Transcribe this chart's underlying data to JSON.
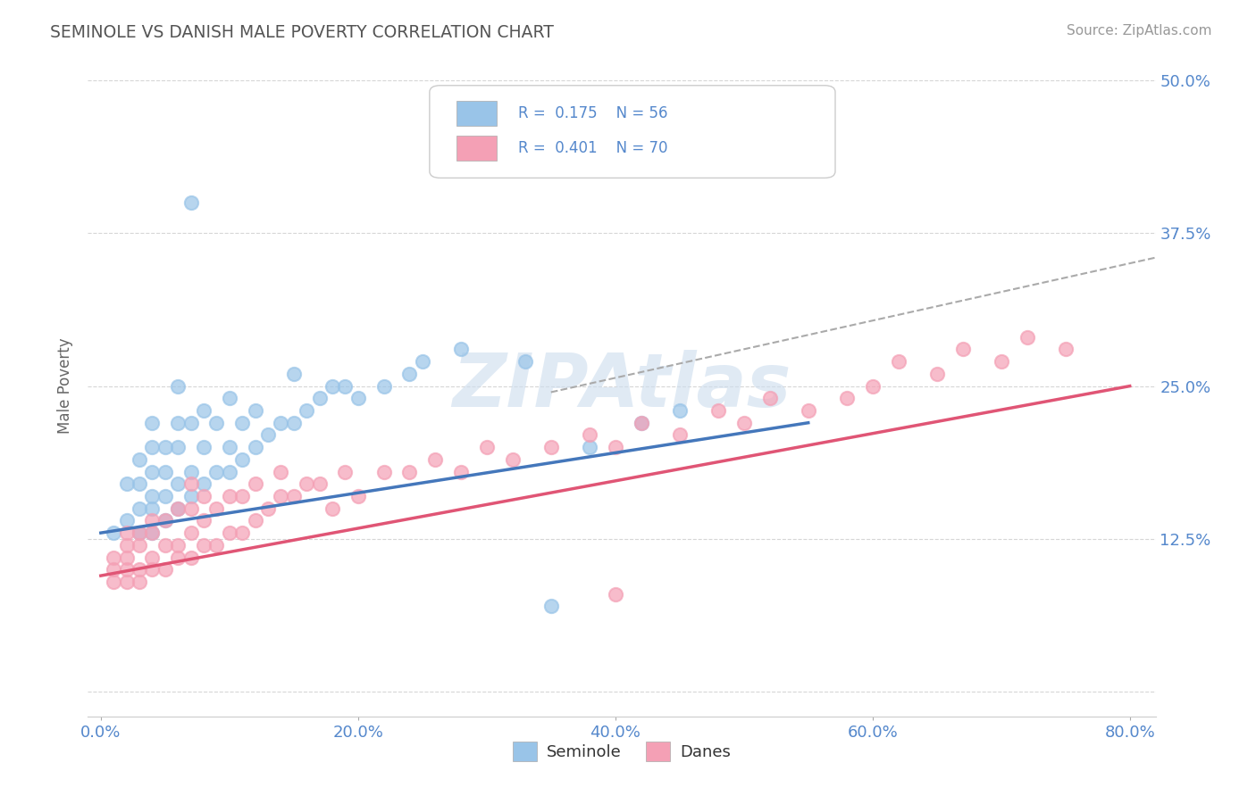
{
  "title": "SEMINOLE VS DANISH MALE POVERTY CORRELATION CHART",
  "source": "Source: ZipAtlas.com",
  "ylabel": "Male Poverty",
  "xlim": [
    -0.01,
    0.82
  ],
  "ylim": [
    -0.02,
    0.52
  ],
  "xticks": [
    0.0,
    0.2,
    0.4,
    0.6,
    0.8
  ],
  "xtick_labels": [
    "0.0%",
    "20.0%",
    "40.0%",
    "60.0%",
    "80.0%"
  ],
  "yticks": [
    0.0,
    0.125,
    0.25,
    0.375,
    0.5
  ],
  "ytick_labels": [
    "",
    "12.5%",
    "25.0%",
    "37.5%",
    "50.0%"
  ],
  "seminole_R": 0.175,
  "seminole_N": 56,
  "danes_R": 0.401,
  "danes_N": 70,
  "seminole_color": "#99c4e8",
  "danes_color": "#f4a0b5",
  "seminole_line_color": "#4477bb",
  "danes_line_color": "#e05575",
  "seminole_line_style": "-",
  "danes_line_style": "-",
  "gray_dashed_color": "#aaaaaa",
  "title_color": "#555555",
  "tick_color": "#5588cc",
  "watermark": "ZIPAtlas",
  "watermark_color": "#ccddee",
  "legend_label_1": "Seminole",
  "legend_label_2": "Danes",
  "background_color": "#ffffff",
  "grid_color": "#cccccc",
  "seminole_x": [
    0.01,
    0.02,
    0.02,
    0.03,
    0.03,
    0.03,
    0.03,
    0.04,
    0.04,
    0.04,
    0.04,
    0.04,
    0.04,
    0.05,
    0.05,
    0.05,
    0.05,
    0.06,
    0.06,
    0.06,
    0.06,
    0.06,
    0.07,
    0.07,
    0.07,
    0.08,
    0.08,
    0.08,
    0.09,
    0.09,
    0.1,
    0.1,
    0.1,
    0.11,
    0.11,
    0.12,
    0.12,
    0.13,
    0.14,
    0.15,
    0.15,
    0.16,
    0.17,
    0.18,
    0.19,
    0.2,
    0.22,
    0.24,
    0.25,
    0.28,
    0.33,
    0.35,
    0.38,
    0.42,
    0.45,
    0.07
  ],
  "seminole_y": [
    0.13,
    0.14,
    0.17,
    0.13,
    0.15,
    0.17,
    0.19,
    0.13,
    0.15,
    0.16,
    0.18,
    0.2,
    0.22,
    0.14,
    0.16,
    0.18,
    0.2,
    0.15,
    0.17,
    0.2,
    0.22,
    0.25,
    0.16,
    0.18,
    0.22,
    0.17,
    0.2,
    0.23,
    0.18,
    0.22,
    0.18,
    0.2,
    0.24,
    0.19,
    0.22,
    0.2,
    0.23,
    0.21,
    0.22,
    0.22,
    0.26,
    0.23,
    0.24,
    0.25,
    0.25,
    0.24,
    0.25,
    0.26,
    0.27,
    0.28,
    0.27,
    0.07,
    0.2,
    0.22,
    0.23,
    0.4
  ],
  "danes_x": [
    0.01,
    0.01,
    0.01,
    0.02,
    0.02,
    0.02,
    0.02,
    0.02,
    0.03,
    0.03,
    0.03,
    0.03,
    0.04,
    0.04,
    0.04,
    0.04,
    0.05,
    0.05,
    0.05,
    0.06,
    0.06,
    0.06,
    0.07,
    0.07,
    0.07,
    0.07,
    0.08,
    0.08,
    0.08,
    0.09,
    0.09,
    0.1,
    0.1,
    0.11,
    0.11,
    0.12,
    0.12,
    0.13,
    0.14,
    0.14,
    0.15,
    0.16,
    0.17,
    0.18,
    0.19,
    0.2,
    0.22,
    0.24,
    0.26,
    0.28,
    0.3,
    0.32,
    0.35,
    0.38,
    0.4,
    0.42,
    0.45,
    0.48,
    0.5,
    0.52,
    0.55,
    0.58,
    0.6,
    0.62,
    0.65,
    0.67,
    0.7,
    0.72,
    0.75,
    0.4
  ],
  "danes_y": [
    0.09,
    0.1,
    0.11,
    0.09,
    0.1,
    0.11,
    0.12,
    0.13,
    0.09,
    0.1,
    0.12,
    0.13,
    0.1,
    0.11,
    0.13,
    0.14,
    0.1,
    0.12,
    0.14,
    0.11,
    0.12,
    0.15,
    0.11,
    0.13,
    0.15,
    0.17,
    0.12,
    0.14,
    0.16,
    0.12,
    0.15,
    0.13,
    0.16,
    0.13,
    0.16,
    0.14,
    0.17,
    0.15,
    0.16,
    0.18,
    0.16,
    0.17,
    0.17,
    0.15,
    0.18,
    0.16,
    0.18,
    0.18,
    0.19,
    0.18,
    0.2,
    0.19,
    0.2,
    0.21,
    0.2,
    0.22,
    0.21,
    0.23,
    0.22,
    0.24,
    0.23,
    0.24,
    0.25,
    0.27,
    0.26,
    0.28,
    0.27,
    0.29,
    0.28,
    0.08
  ]
}
